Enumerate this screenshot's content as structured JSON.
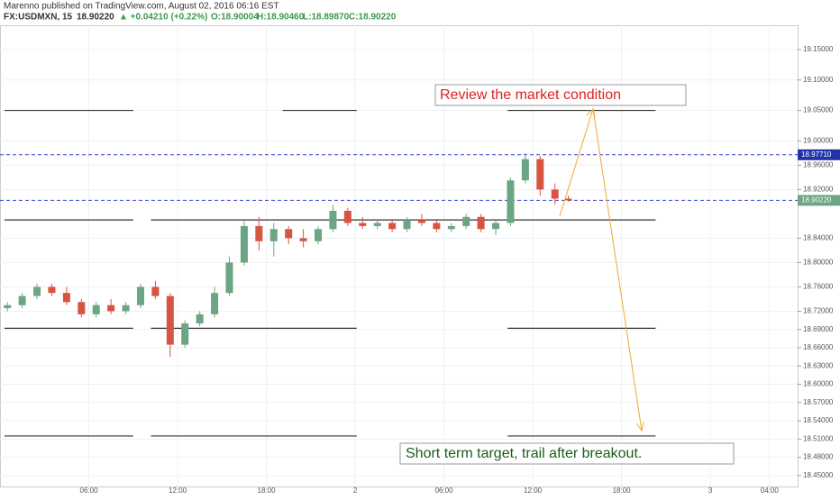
{
  "chart_data": {
    "type": "candlestick",
    "header": "Marenno published on TradingView.com, August 02, 2016 06:16 EST",
    "symbol": "FX:USDMXN, 15",
    "last": "18.90220",
    "change": "▲ +0.04210 (+0.22%)",
    "ohlc_text": [
      "O:18.90004",
      "H:18.90460",
      "L:18.89870",
      "C:18.90220"
    ],
    "x": [
      0.5,
      1.5,
      2.5,
      3.5,
      4.5,
      5.5,
      6.5,
      7.5,
      8.5,
      9.5,
      10.5,
      11.5,
      12.5,
      13.5,
      14.5,
      15.5,
      16.5,
      17.5,
      18.5,
      19.5,
      20.5,
      21.5,
      22.5,
      23.5,
      24.5,
      25.5,
      26.5,
      27.5,
      28.5,
      29.5,
      30.5,
      31.5,
      32.5,
      33.5,
      34.5,
      35.5,
      36.5,
      37.5,
      38.4
    ],
    "open": [
      18.725,
      18.73,
      18.745,
      18.76,
      18.75,
      18.735,
      18.715,
      18.73,
      18.72,
      18.73,
      18.76,
      18.745,
      18.665,
      18.7,
      18.715,
      18.75,
      18.8,
      18.86,
      18.835,
      18.855,
      18.84,
      18.835,
      18.855,
      18.885,
      18.865,
      18.86,
      18.865,
      18.855,
      18.87,
      18.865,
      18.855,
      18.86,
      18.875,
      18.855,
      18.865,
      18.935,
      18.97,
      18.92,
      18.905
    ],
    "high": [
      18.735,
      18.75,
      18.765,
      18.765,
      18.76,
      18.74,
      18.735,
      18.74,
      18.735,
      18.765,
      18.77,
      18.75,
      18.705,
      18.72,
      18.76,
      18.81,
      18.87,
      18.875,
      18.865,
      18.86,
      18.855,
      18.86,
      18.895,
      18.89,
      18.875,
      18.87,
      18.87,
      18.875,
      18.88,
      18.87,
      18.865,
      18.88,
      18.88,
      18.87,
      18.94,
      18.98,
      18.975,
      18.93,
      18.91
    ],
    "low": [
      18.72,
      18.725,
      18.74,
      18.745,
      18.73,
      18.71,
      18.71,
      18.715,
      18.715,
      18.725,
      18.74,
      18.645,
      18.66,
      18.695,
      18.71,
      18.745,
      18.795,
      18.82,
      18.81,
      18.83,
      18.825,
      18.83,
      18.85,
      18.86,
      18.855,
      18.855,
      18.85,
      18.85,
      18.86,
      18.85,
      18.85,
      18.855,
      18.85,
      18.845,
      18.86,
      18.93,
      18.91,
      18.895,
      18.9
    ],
    "close": [
      18.73,
      18.745,
      18.76,
      18.75,
      18.735,
      18.715,
      18.73,
      18.72,
      18.73,
      18.76,
      18.745,
      18.665,
      18.7,
      18.715,
      18.75,
      18.8,
      18.86,
      18.835,
      18.855,
      18.84,
      18.835,
      18.855,
      18.885,
      18.865,
      18.86,
      18.865,
      18.855,
      18.87,
      18.865,
      18.855,
      18.86,
      18.875,
      18.855,
      18.865,
      18.935,
      18.97,
      18.92,
      18.905,
      18.9022
    ],
    "up_color": "#6ba583",
    "down_color": "#d75442",
    "xlim": [
      0,
      53.9
    ],
    "ylim": [
      18.432,
      19.19
    ],
    "xticks": [
      {
        "value": 6,
        "label": "06:00"
      },
      {
        "value": 12,
        "label": "12:00"
      },
      {
        "value": 18,
        "label": "18:00"
      },
      {
        "value": 24,
        "label": "2"
      },
      {
        "value": 30,
        "label": "06:00"
      },
      {
        "value": 36,
        "label": "12:00"
      },
      {
        "value": 42,
        "label": "18:00"
      },
      {
        "value": 48,
        "label": "3"
      },
      {
        "value": 52,
        "label": "04:00"
      }
    ],
    "yticks": [
      {
        "value": 19.15,
        "label": "19.15000"
      },
      {
        "value": 19.1,
        "label": "19.10000"
      },
      {
        "value": 19.05,
        "label": "19.05000"
      },
      {
        "value": 19.0,
        "label": "19.00000"
      },
      {
        "value": 18.96,
        "label": "18.96000"
      },
      {
        "value": 18.92,
        "label": "18.92000"
      },
      {
        "value": 18.84,
        "label": "18.84000"
      },
      {
        "value": 18.8,
        "label": "18.80000"
      },
      {
        "value": 18.76,
        "label": "18.76000"
      },
      {
        "value": 18.72,
        "label": "18.72000"
      },
      {
        "value": 18.69,
        "label": "18.69000"
      },
      {
        "value": 18.66,
        "label": "18.66000"
      },
      {
        "value": 18.63,
        "label": "18.63000"
      },
      {
        "value": 18.6,
        "label": "18.60000"
      },
      {
        "value": 18.57,
        "label": "18.57000"
      },
      {
        "value": 18.54,
        "label": "18.54000"
      },
      {
        "value": 18.51,
        "label": "18.51000"
      },
      {
        "value": 18.48,
        "label": "18.48000"
      },
      {
        "value": 18.45,
        "label": "18.45000"
      }
    ],
    "grid": true,
    "levels": [
      {
        "value": 19.05,
        "segments": [
          [
            0.3,
            9
          ],
          [
            19.1,
            24.1
          ],
          [
            34.3,
            44.3
          ]
        ]
      },
      {
        "value": 18.87,
        "segments": [
          [
            0.3,
            9
          ],
          [
            10.2,
            44.3
          ]
        ]
      },
      {
        "value": 18.692,
        "segments": [
          [
            0.3,
            9
          ],
          [
            10.2,
            24.1
          ],
          [
            34.3,
            44.3
          ]
        ]
      },
      {
        "value": 18.515,
        "segments": [
          [
            0.3,
            9
          ],
          [
            10.2,
            24.1
          ],
          [
            34.3,
            44.3
          ]
        ]
      }
    ],
    "price_lines": [
      {
        "value": 18.9771,
        "label": "18.97710"
      },
      {
        "value": 18.9022,
        "label": "18.90220"
      }
    ],
    "annotations": [
      "Review the market condition",
      "Short term target, trail after breakout."
    ]
  }
}
